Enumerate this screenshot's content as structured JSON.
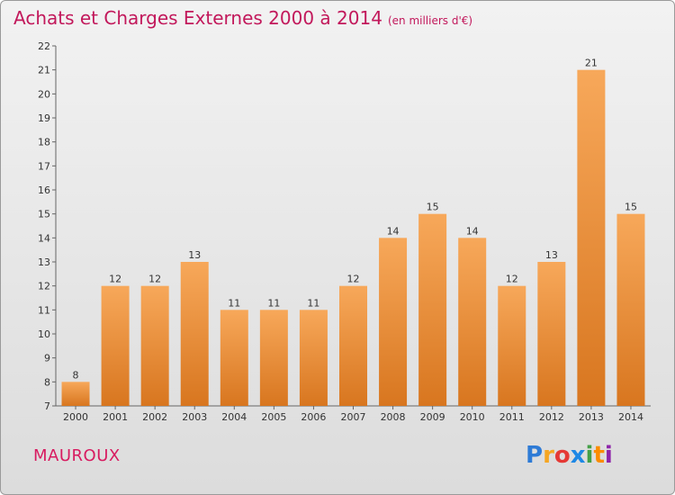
{
  "header": {
    "title": "Achats et Charges Externes 2000 à 2014",
    "unit": "(en milliers d'€)"
  },
  "footer": {
    "commune": "MAUROUX",
    "logo_letters": [
      "P",
      "r",
      "o",
      "x",
      "i",
      "t",
      "i"
    ],
    "logo_colors": [
      "#2e7bd6",
      "#f5a623",
      "#e53935",
      "#1e88e5",
      "#43a047",
      "#fb8c00",
      "#8e24aa"
    ]
  },
  "chart_data": {
    "type": "bar",
    "title": "Achats et Charges Externes 2000 à 2014",
    "xlabel": "",
    "ylabel": "",
    "categories": [
      "2000",
      "2001",
      "2002",
      "2003",
      "2004",
      "2005",
      "2006",
      "2007",
      "2008",
      "2009",
      "2010",
      "2011",
      "2012",
      "2013",
      "2014"
    ],
    "values": [
      8,
      12,
      12,
      13,
      11,
      11,
      11,
      12,
      14,
      15,
      14,
      12,
      13,
      21,
      15
    ],
    "ylim": [
      7,
      22
    ],
    "yticks": [
      7,
      8,
      9,
      10,
      11,
      12,
      13,
      14,
      15,
      16,
      17,
      18,
      19,
      20,
      21,
      22
    ],
    "bar_color_top": "#f7a85a",
    "bar_color_bottom": "#d8761f",
    "grid": false
  }
}
